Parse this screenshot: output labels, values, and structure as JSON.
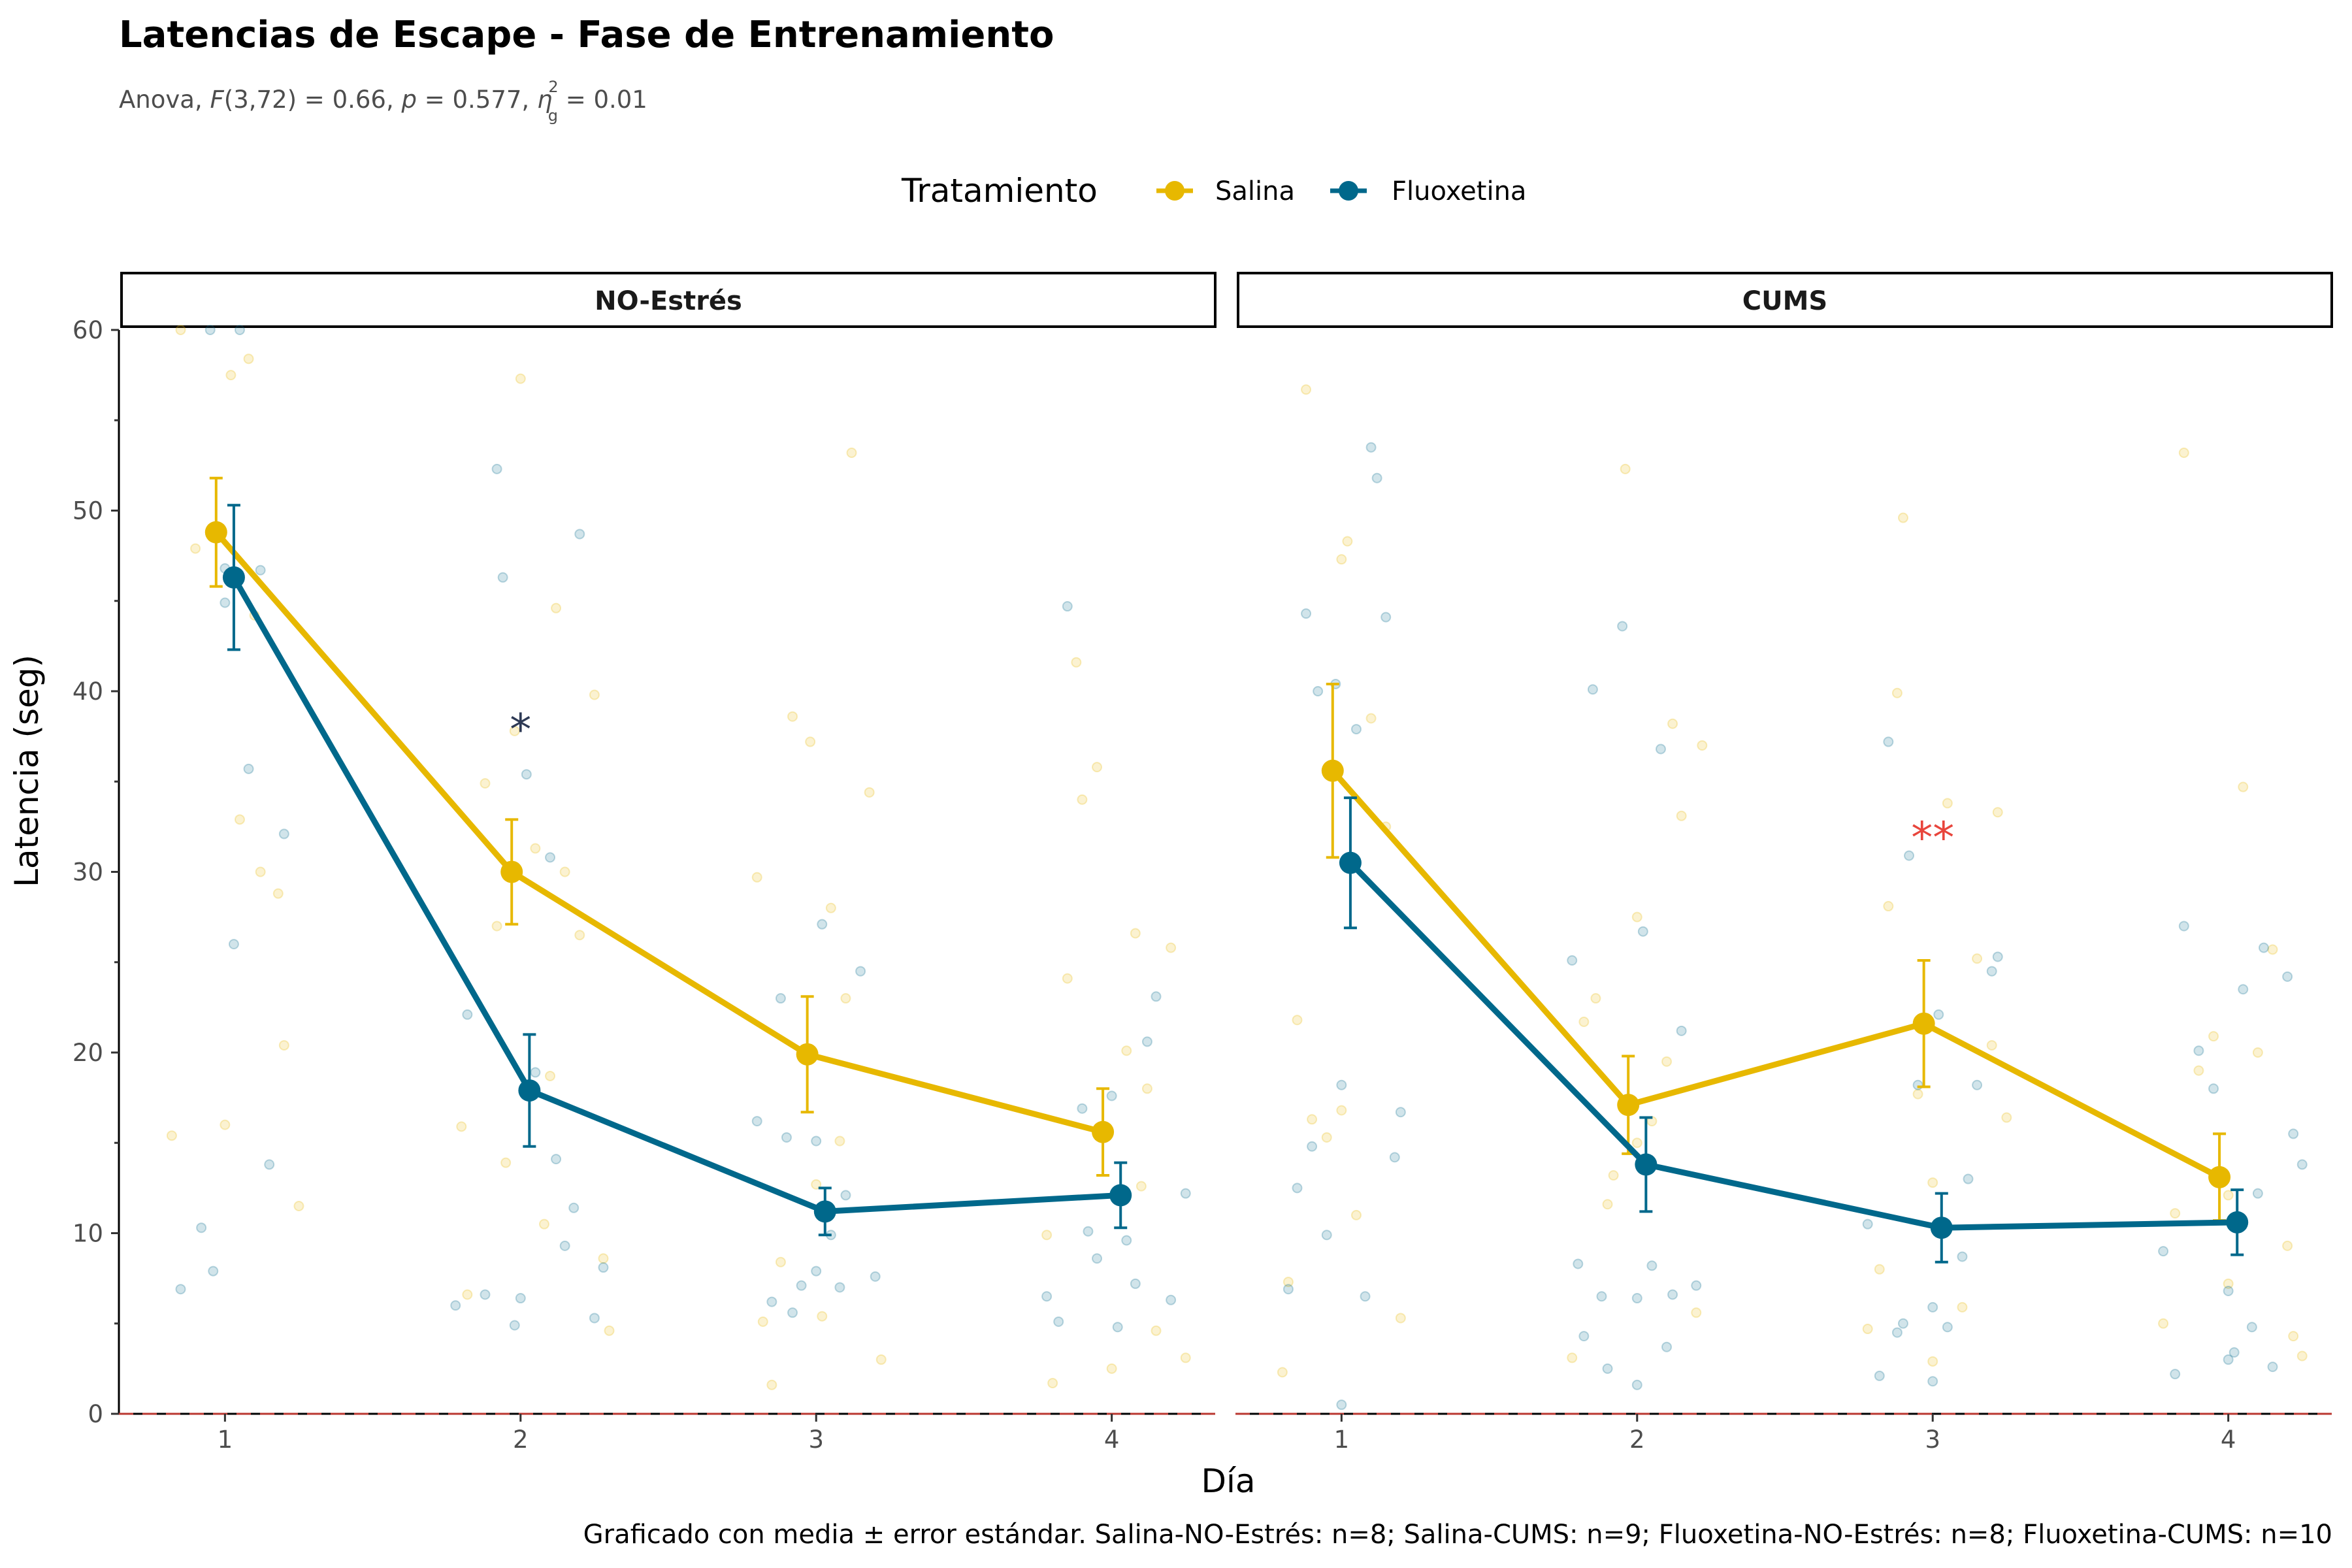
{
  "title": "Latencias de Escape - Fase de Entrenamiento",
  "subtitle": {
    "prefix": "Anova, ",
    "F": "F",
    "df": "(3,72) = 0.66, ",
    "p": "p",
    "p_value": " = 0.577, ",
    "eta": "η",
    "eta_sup": "2",
    "eta_sub": "g",
    "eta_value": " = 0.01"
  },
  "caption": "Graficado con media ± error estándar. Salina-NO-Estrés: n=8; Salina-CUMS: n=9; Fluoxetina-NO-Estrés: n=8; Fluoxetina-CUMS: n=10",
  "legend": {
    "title": "Tratamiento",
    "position": "top",
    "items": [
      {
        "label": "Salina",
        "color": "#E7B800"
      },
      {
        "label": "Fluoxetina",
        "color": "#00688B"
      }
    ]
  },
  "colors": {
    "salina": "#E7B800",
    "fluoxetina": "#00688B",
    "sig_dark": "#2E3A55",
    "sig_red": "#E8453C",
    "zero_line": "#E8453C"
  },
  "chart_data": {
    "type": "line",
    "xlabel": "Día",
    "ylabel": "Latencia (seg)",
    "ylim": [
      0,
      60
    ],
    "yticks": [
      0,
      10,
      20,
      30,
      40,
      50,
      60
    ],
    "xticks": [
      1,
      2,
      3,
      4
    ],
    "grid": false,
    "error_bars": "media ± error estándar",
    "reference_line_y": 0,
    "panels": [
      {
        "label": "NO-Estrés",
        "series": [
          {
            "name": "Salina",
            "x": [
              1,
              2,
              3,
              4
            ],
            "values": [
              48.8,
              30.0,
              19.9,
              15.6
            ],
            "se": [
              3.0,
              2.9,
              3.2,
              2.4
            ]
          },
          {
            "name": "Fluoxetina",
            "x": [
              1,
              2,
              3,
              4
            ],
            "values": [
              46.3,
              17.9,
              11.2,
              12.1
            ],
            "se": [
              4.0,
              3.1,
              1.3,
              1.8
            ]
          }
        ],
        "annotations": [
          {
            "day": 2,
            "y": 38,
            "text": "*",
            "color": "#2E3A55"
          }
        ],
        "raw_points": {
          "Salina": [
            [
              0.82,
              15.4
            ],
            [
              0.9,
              47.9
            ],
            [
              1.0,
              16.0
            ],
            [
              1.05,
              32.9
            ],
            [
              1.08,
              58.4
            ],
            [
              1.12,
              30.0
            ],
            [
              1.18,
              28.8
            ],
            [
              1.2,
              20.4
            ],
            [
              1.25,
              11.5
            ],
            [
              0.85,
              60
            ],
            [
              1.02,
              57.5
            ],
            [
              1.1,
              44.2
            ],
            [
              1.8,
              15.9
            ],
            [
              1.82,
              6.6
            ],
            [
              1.88,
              34.9
            ],
            [
              1.92,
              27.0
            ],
            [
              1.95,
              13.9
            ],
            [
              1.98,
              37.8
            ],
            [
              2.05,
              31.3
            ],
            [
              2.1,
              18.7
            ],
            [
              2.12,
              44.6
            ],
            [
              2.15,
              30.0
            ],
            [
              2.2,
              26.5
            ],
            [
              2.25,
              39.8
            ],
            [
              2.28,
              8.6
            ],
            [
              2.3,
              4.6
            ],
            [
              2.0,
              57.3
            ],
            [
              2.08,
              10.5
            ],
            [
              2.8,
              29.7
            ],
            [
              2.82,
              5.1
            ],
            [
              2.85,
              1.6
            ],
            [
              2.88,
              8.4
            ],
            [
              2.92,
              38.6
            ],
            [
              2.98,
              37.2
            ],
            [
              3.02,
              5.4
            ],
            [
              3.05,
              28.0
            ],
            [
              3.1,
              23.0
            ],
            [
              3.12,
              53.2
            ],
            [
              3.18,
              34.4
            ],
            [
              3.22,
              3.0
            ],
            [
              3.0,
              12.7
            ],
            [
              3.08,
              15.1
            ],
            [
              3.78,
              9.9
            ],
            [
              3.8,
              1.7
            ],
            [
              3.85,
              24.1
            ],
            [
              3.88,
              41.6
            ],
            [
              3.9,
              34.0
            ],
            [
              3.95,
              35.8
            ],
            [
              4.05,
              20.1
            ],
            [
              4.08,
              26.6
            ],
            [
              4.12,
              18.0
            ],
            [
              4.15,
              4.6
            ],
            [
              4.2,
              25.8
            ],
            [
              4.25,
              3.1
            ],
            [
              4.0,
              2.5
            ],
            [
              4.1,
              12.6
            ]
          ],
          "Fluoxetina": [
            [
              0.85,
              6.9
            ],
            [
              0.92,
              10.3
            ],
            [
              0.96,
              7.9
            ],
            [
              1.0,
              46.8
            ],
            [
              1.03,
              26.0
            ],
            [
              1.08,
              35.7
            ],
            [
              1.15,
              13.8
            ],
            [
              1.2,
              32.1
            ],
            [
              1.12,
              46.7
            ],
            [
              0.95,
              60
            ],
            [
              1.05,
              60
            ],
            [
              1.0,
              44.9
            ],
            [
              1.78,
              6.0
            ],
            [
              1.82,
              22.1
            ],
            [
              1.88,
              6.6
            ],
            [
              1.92,
              52.3
            ],
            [
              1.94,
              46.3
            ],
            [
              1.98,
              4.9
            ],
            [
              2.02,
              35.4
            ],
            [
              2.05,
              18.9
            ],
            [
              2.1,
              30.8
            ],
            [
              2.12,
              14.1
            ],
            [
              2.18,
              11.4
            ],
            [
              2.2,
              48.7
            ],
            [
              2.25,
              5.3
            ],
            [
              2.28,
              8.1
            ],
            [
              2.0,
              6.4
            ],
            [
              2.15,
              9.3
            ],
            [
              2.8,
              16.2
            ],
            [
              2.85,
              6.2
            ],
            [
              2.88,
              23.0
            ],
            [
              2.9,
              15.3
            ],
            [
              2.95,
              7.1
            ],
            [
              3.0,
              7.9
            ],
            [
              3.02,
              27.1
            ],
            [
              3.05,
              9.9
            ],
            [
              3.1,
              12.1
            ],
            [
              3.15,
              24.5
            ],
            [
              3.2,
              7.6
            ],
            [
              3.0,
              15.1
            ],
            [
              2.92,
              5.6
            ],
            [
              3.08,
              7.0
            ],
            [
              3.78,
              6.5
            ],
            [
              3.82,
              5.1
            ],
            [
              3.85,
              44.7
            ],
            [
              3.9,
              16.9
            ],
            [
              3.95,
              8.6
            ],
            [
              4.0,
              17.6
            ],
            [
              4.02,
              4.8
            ],
            [
              4.08,
              7.2
            ],
            [
              4.12,
              20.6
            ],
            [
              4.15,
              23.1
            ],
            [
              4.2,
              6.3
            ],
            [
              4.25,
              12.2
            ],
            [
              4.05,
              9.6
            ],
            [
              3.92,
              10.1
            ]
          ]
        }
      },
      {
        "label": "CUMS",
        "series": [
          {
            "name": "Salina",
            "x": [
              1,
              2,
              3,
              4
            ],
            "values": [
              35.6,
              17.1,
              21.6,
              13.1
            ],
            "se": [
              4.8,
              2.7,
              3.5,
              2.4
            ]
          },
          {
            "name": "Fluoxetina",
            "x": [
              1,
              2,
              3,
              4
            ],
            "values": [
              30.5,
              13.8,
              10.3,
              10.6
            ],
            "se": [
              3.6,
              2.6,
              1.9,
              1.8
            ]
          }
        ],
        "annotations": [
          {
            "day": 3,
            "y": 32,
            "text": "**",
            "color": "#E8453C"
          }
        ],
        "raw_points": {
          "Salina": [
            [
              0.8,
              2.3
            ],
            [
              0.82,
              7.3
            ],
            [
              0.85,
              21.8
            ],
            [
              0.9,
              16.3
            ],
            [
              0.95,
              15.3
            ],
            [
              1.0,
              47.3
            ],
            [
              1.02,
              48.3
            ],
            [
              1.05,
              11.0
            ],
            [
              1.1,
              38.5
            ],
            [
              1.15,
              32.5
            ],
            [
              1.2,
              5.3
            ],
            [
              0.88,
              56.7
            ],
            [
              1.0,
              16.8
            ],
            [
              1.78,
              3.1
            ],
            [
              1.82,
              21.7
            ],
            [
              1.86,
              23.0
            ],
            [
              1.9,
              11.6
            ],
            [
              1.92,
              13.2
            ],
            [
              1.96,
              52.3
            ],
            [
              2.0,
              27.5
            ],
            [
              2.05,
              16.2
            ],
            [
              2.1,
              19.5
            ],
            [
              2.12,
              38.2
            ],
            [
              2.15,
              33.1
            ],
            [
              2.2,
              5.6
            ],
            [
              2.22,
              37.0
            ],
            [
              2.0,
              15.0
            ],
            [
              2.78,
              4.7
            ],
            [
              2.82,
              8.0
            ],
            [
              2.85,
              28.1
            ],
            [
              2.88,
              39.9
            ],
            [
              2.9,
              49.6
            ],
            [
              2.95,
              17.7
            ],
            [
              3.0,
              12.8
            ],
            [
              3.05,
              33.8
            ],
            [
              3.1,
              5.9
            ],
            [
              3.15,
              25.2
            ],
            [
              3.2,
              20.4
            ],
            [
              3.22,
              33.3
            ],
            [
              3.25,
              16.4
            ],
            [
              3.0,
              2.9
            ],
            [
              3.78,
              5.0
            ],
            [
              3.82,
              11.1
            ],
            [
              3.85,
              53.2
            ],
            [
              3.9,
              19.0
            ],
            [
              3.95,
              20.9
            ],
            [
              4.0,
              7.2
            ],
            [
              4.05,
              34.7
            ],
            [
              4.1,
              20.0
            ],
            [
              4.15,
              25.7
            ],
            [
              4.2,
              9.3
            ],
            [
              4.22,
              4.3
            ],
            [
              4.25,
              3.2
            ],
            [
              4.0,
              12.1
            ]
          ],
          "Fluoxetina": [
            [
              0.82,
              6.9
            ],
            [
              0.85,
              12.5
            ],
            [
              0.88,
              44.3
            ],
            [
              0.9,
              14.8
            ],
            [
              0.92,
              40.0
            ],
            [
              0.95,
              9.9
            ],
            [
              0.98,
              40.4
            ],
            [
              1.0,
              18.2
            ],
            [
              1.05,
              37.9
            ],
            [
              1.1,
              53.5
            ],
            [
              1.12,
              51.8
            ],
            [
              1.15,
              44.1
            ],
            [
              1.18,
              14.2
            ],
            [
              1.2,
              16.7
            ],
            [
              1.0,
              0.5
            ],
            [
              1.08,
              6.5
            ],
            [
              1.78,
              25.1
            ],
            [
              1.8,
              8.3
            ],
            [
              1.82,
              4.3
            ],
            [
              1.85,
              40.1
            ],
            [
              1.88,
              6.5
            ],
            [
              1.9,
              2.5
            ],
            [
              1.95,
              43.6
            ],
            [
              2.0,
              6.4
            ],
            [
              2.02,
              26.7
            ],
            [
              2.05,
              8.2
            ],
            [
              2.08,
              36.8
            ],
            [
              2.1,
              3.7
            ],
            [
              2.12,
              6.6
            ],
            [
              2.15,
              21.2
            ],
            [
              2.2,
              7.1
            ],
            [
              2.0,
              1.6
            ],
            [
              2.78,
              10.5
            ],
            [
              2.82,
              2.1
            ],
            [
              2.85,
              37.2
            ],
            [
              2.88,
              4.5
            ],
            [
              2.9,
              5.0
            ],
            [
              2.95,
              18.2
            ],
            [
              3.0,
              5.9
            ],
            [
              3.02,
              22.1
            ],
            [
              3.05,
              4.8
            ],
            [
              3.1,
              8.7
            ],
            [
              3.12,
              13.0
            ],
            [
              3.15,
              18.2
            ],
            [
              3.2,
              24.5
            ],
            [
              3.22,
              25.3
            ],
            [
              3.0,
              1.8
            ],
            [
              2.92,
              30.9
            ],
            [
              3.78,
              9.0
            ],
            [
              3.82,
              2.2
            ],
            [
              3.85,
              27.0
            ],
            [
              3.9,
              20.1
            ],
            [
              3.95,
              18.0
            ],
            [
              4.0,
              6.8
            ],
            [
              4.02,
              3.4
            ],
            [
              4.05,
              23.5
            ],
            [
              4.1,
              12.2
            ],
            [
              4.12,
              25.8
            ],
            [
              4.15,
              2.6
            ],
            [
              4.2,
              24.2
            ],
            [
              4.22,
              15.5
            ],
            [
              4.25,
              13.8
            ],
            [
              4.0,
              3.0
            ],
            [
              4.08,
              4.8
            ]
          ]
        }
      }
    ]
  }
}
